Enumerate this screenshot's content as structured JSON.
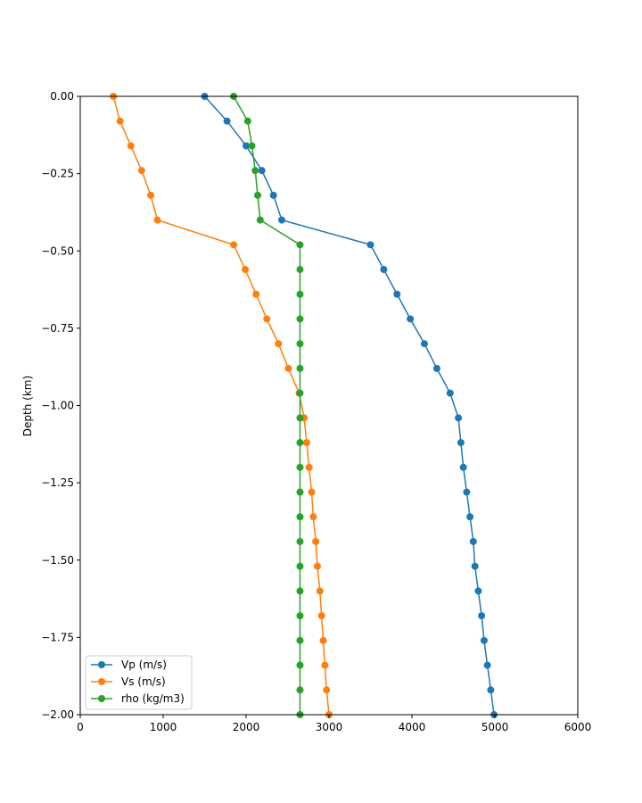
{
  "chart_data": {
    "type": "line",
    "ylabel": "Depth (km)",
    "xlabel": "",
    "xlim": [
      0,
      6000
    ],
    "ylim": [
      -2.0,
      0.0
    ],
    "x_ticks": [
      0,
      1000,
      2000,
      3000,
      4000,
      5000,
      6000
    ],
    "x_tick_labels": [
      "0",
      "1000",
      "2000",
      "3000",
      "4000",
      "5000",
      "6000"
    ],
    "y_ticks": [
      0.0,
      -0.25,
      -0.5,
      -0.75,
      -1.0,
      -1.25,
      -1.5,
      -1.75,
      -2.0
    ],
    "y_tick_labels": [
      "0.00",
      "−0.25",
      "−0.50",
      "−0.75",
      "−1.00",
      "−1.25",
      "−1.50",
      "−1.75",
      "−2.00"
    ],
    "grid": false,
    "legend_position": "lower-left",
    "depth": [
      0.0,
      -0.08,
      -0.16,
      -0.24,
      -0.32,
      -0.4,
      -0.48,
      -0.56,
      -0.64,
      -0.72,
      -0.8,
      -0.88,
      -0.96,
      -1.04,
      -1.12,
      -1.2,
      -1.28,
      -1.36,
      -1.44,
      -1.52,
      -1.6,
      -1.68,
      -1.76,
      -1.84,
      -1.92,
      -2.0
    ],
    "series": [
      {
        "name": "Vp (m/s)",
        "color": "#1f77b4",
        "values": [
          1500,
          1770,
          2000,
          2190,
          2330,
          2430,
          3500,
          3660,
          3820,
          3980,
          4150,
          4300,
          4460,
          4560,
          4590,
          4620,
          4660,
          4700,
          4740,
          4760,
          4800,
          4840,
          4870,
          4910,
          4950,
          4990
        ]
      },
      {
        "name": "Vs (m/s)",
        "color": "#ff7f0e",
        "values": [
          400,
          480,
          610,
          740,
          850,
          930,
          1850,
          1990,
          2120,
          2250,
          2390,
          2510,
          2640,
          2700,
          2730,
          2760,
          2790,
          2810,
          2840,
          2860,
          2890,
          2910,
          2930,
          2950,
          2970,
          3000
        ]
      },
      {
        "name": "rho (kg/m3)",
        "color": "#2ca02c",
        "values": [
          1850,
          2020,
          2070,
          2110,
          2140,
          2170,
          2650,
          2650,
          2650,
          2650,
          2650,
          2650,
          2650,
          2650,
          2650,
          2650,
          2650,
          2650,
          2650,
          2650,
          2650,
          2650,
          2650,
          2650,
          2650,
          2650
        ]
      }
    ]
  }
}
